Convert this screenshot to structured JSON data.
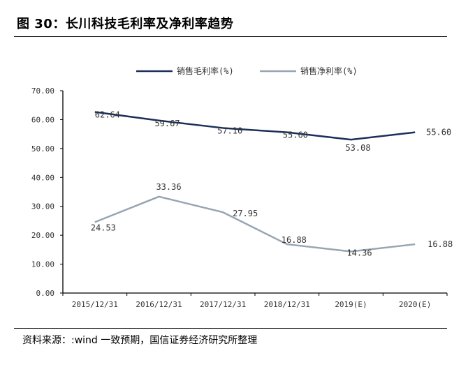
{
  "header": {
    "title": "图 30：长川科技毛利率及净利率趋势"
  },
  "footer": {
    "source": "资料来源：:wind 一致预期，国信证券经济研究所整理"
  },
  "chart_data": {
    "type": "line",
    "title": "",
    "xlabel": "",
    "ylabel": "",
    "categories": [
      "2015/12/31",
      "2016/12/31",
      "2017/12/31",
      "2018/12/31",
      "2019(E)",
      "2020(E)"
    ],
    "ylim": [
      0,
      70
    ],
    "yticks": [
      "0.00",
      "10.00",
      "20.00",
      "30.00",
      "40.00",
      "50.00",
      "60.00",
      "70.00"
    ],
    "grid": false,
    "legend_position": "top-center",
    "series": [
      {
        "name": "销售毛利率(%)",
        "color": "#1b2f5a",
        "values": [
          62.64,
          59.67,
          57.1,
          55.6,
          53.08,
          55.6
        ],
        "labels": [
          "62.64",
          "59.67",
          "57.10",
          "55.60",
          "53.08",
          "55.60"
        ]
      },
      {
        "name": "销售净利率(%)",
        "color": "#97a5b2",
        "values": [
          24.53,
          33.36,
          27.95,
          16.88,
          14.36,
          16.88
        ],
        "labels": [
          "24.53",
          "33.36",
          "27.95",
          "16.88",
          "14.36",
          "16.88"
        ]
      }
    ]
  }
}
